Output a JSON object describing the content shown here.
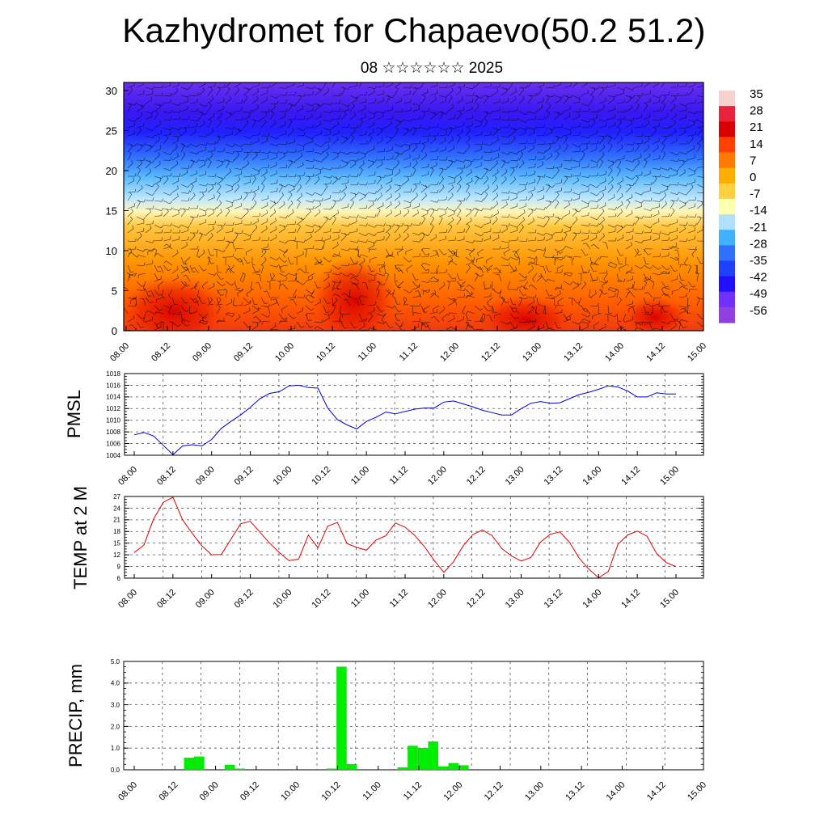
{
  "header": {
    "title": "Kazhydromet for Chapaevo(50.2 51.2)",
    "subtitle": "08 ☆☆☆☆☆☆ 2025"
  },
  "colors": {
    "pmsl_line": "#0000dd",
    "temp_line": "#e00000",
    "precip_bar": "#00ee00",
    "gridline": "#555555"
  },
  "chart_data": [
    {
      "id": "cross-section",
      "type": "heatmap",
      "title": "",
      "ylabel": "",
      "ylim": [
        0,
        31
      ],
      "yticks": [
        "0",
        "5",
        "10",
        "15",
        "20",
        "25",
        "30"
      ],
      "x_tick_labels": [
        "08.00",
        "08.12",
        "09.00",
        "09.12",
        "10.00",
        "10.12",
        "11.00",
        "11.12",
        "12.00",
        "12.12",
        "13.00",
        "13.12",
        "14.00",
        "14.12",
        "15.00"
      ],
      "colorbar_labels": [
        "35",
        "28",
        "21",
        "14",
        "7",
        "0",
        "-7",
        "-14",
        "-21",
        "-28",
        "-35",
        "-42",
        "-49",
        "-56"
      ],
      "colorbar_colors": [
        "#f7d0d0",
        "#e8243c",
        "#d80000",
        "#ff4000",
        "#ff7a00",
        "#ffae00",
        "#ffd040",
        "#ffffb0",
        "#b0e0ff",
        "#40b0ff",
        "#3070ff",
        "#2040ff",
        "#2010ff",
        "#7030ff",
        "#9040e0"
      ],
      "overlay": "wind barbs"
    },
    {
      "id": "pmsl",
      "type": "line",
      "title": "",
      "ylabel": "PMSL",
      "ylim": [
        1004,
        1018
      ],
      "yticks": [
        "1004",
        "1006",
        "1008",
        "1010",
        "1012",
        "1014",
        "1016",
        "1018"
      ],
      "x_tick_labels": [
        "08.00",
        "08.12",
        "09.00",
        "09.12",
        "10.00",
        "10.12",
        "11.00",
        "11.12",
        "12.00",
        "12.12",
        "13.00",
        "13.12",
        "14.00",
        "14.12",
        "15.00"
      ],
      "x_hours": [
        0,
        3,
        6,
        9,
        12,
        15,
        18,
        21,
        24,
        27,
        30,
        33,
        36,
        39,
        42,
        45,
        48,
        51,
        54,
        57,
        60,
        63,
        66,
        69,
        72,
        75,
        78,
        81,
        84,
        87,
        90,
        93,
        96,
        99,
        102,
        105,
        108,
        111,
        114,
        117,
        120,
        123,
        126,
        129,
        132,
        135,
        138,
        141,
        144,
        147,
        150,
        153,
        156,
        159,
        162,
        165,
        168
      ],
      "values": [
        1007.5,
        1007.9,
        1007.3,
        1005.7,
        1004.1,
        1005.6,
        1005.8,
        1005.6,
        1006.7,
        1008.6,
        1009.8,
        1010.9,
        1012.2,
        1013.7,
        1014.6,
        1014.9,
        1015.9,
        1016.0,
        1015.6,
        1015.5,
        1012.1,
        1010.1,
        1009.2,
        1008.5,
        1009.8,
        1010.5,
        1011.4,
        1011.1,
        1011.5,
        1011.9,
        1012.1,
        1012.1,
        1013.1,
        1013.3,
        1012.8,
        1012.3,
        1011.7,
        1011.3,
        1010.9,
        1010.9,
        1012.0,
        1012.9,
        1013.2,
        1012.9,
        1013.0,
        1013.7,
        1014.4,
        1014.8,
        1015.3,
        1015.9,
        1015.7,
        1015.0,
        1014.0,
        1014.0,
        1014.7,
        1014.5,
        1014.5
      ]
    },
    {
      "id": "temp",
      "type": "line",
      "title": "",
      "ylabel": "TEMP at 2 M",
      "ylim": [
        6,
        27
      ],
      "yticks": [
        "6",
        "9",
        "12",
        "15",
        "18",
        "21",
        "24",
        "27"
      ],
      "x_tick_labels": [
        "08.00",
        "08.12",
        "09.00",
        "09.12",
        "10.00",
        "10.12",
        "11.00",
        "11.12",
        "12.00",
        "12.12",
        "13.00",
        "13.12",
        "14.00",
        "14.12",
        "15.00"
      ],
      "x_hours": [
        0,
        3,
        6,
        9,
        12,
        15,
        18,
        21,
        24,
        27,
        30,
        33,
        36,
        39,
        42,
        45,
        48,
        51,
        54,
        57,
        60,
        63,
        66,
        69,
        72,
        75,
        78,
        81,
        84,
        87,
        90,
        93,
        96,
        99,
        102,
        105,
        108,
        111,
        114,
        117,
        120,
        123,
        126,
        129,
        132,
        135,
        138,
        141,
        144,
        147,
        150,
        153,
        156,
        159,
        162,
        165,
        168
      ],
      "values": [
        12.6,
        14.5,
        21.2,
        25.5,
        26.8,
        21.0,
        17.5,
        14.3,
        12.0,
        12.1,
        16.0,
        20.0,
        20.6,
        17.8,
        15.0,
        12.6,
        10.5,
        10.9,
        17.1,
        13.8,
        19.4,
        20.3,
        14.9,
        13.9,
        13.2,
        15.8,
        16.9,
        20.2,
        19.1,
        17.0,
        14.1,
        10.6,
        7.5,
        10.2,
        14.3,
        17.2,
        18.4,
        16.9,
        13.6,
        11.7,
        10.4,
        11.3,
        15.3,
        17.3,
        17.9,
        15.2,
        11.1,
        8.3,
        6.1,
        7.7,
        14.7,
        17.1,
        18.1,
        16.8,
        12.3,
        10.0,
        9.0
      ]
    },
    {
      "id": "precip",
      "type": "bar",
      "title": "",
      "ylabel": "PRECIP, mm",
      "ylim": [
        0,
        5
      ],
      "yticks": [
        "0.0",
        "1.0",
        "2.0",
        "3.0",
        "4.0",
        "5.0"
      ],
      "x_tick_labels": [
        "08.00",
        "08.12",
        "09.00",
        "09.12",
        "10.00",
        "10.12",
        "11.00",
        "11.12",
        "12.00",
        "12.12",
        "13.00",
        "13.12",
        "14.00",
        "14.12",
        "15.00"
      ],
      "bars": [
        {
          "hour": 15,
          "value": 0.55
        },
        {
          "hour": 18,
          "value": 0.6
        },
        {
          "hour": 27,
          "value": 0.22
        },
        {
          "hour": 30,
          "value": 0.05
        },
        {
          "hour": 57,
          "value": 0.05
        },
        {
          "hour": 60,
          "value": 4.75
        },
        {
          "hour": 63,
          "value": 0.25
        },
        {
          "hour": 78,
          "value": 0.1
        },
        {
          "hour": 81,
          "value": 1.1
        },
        {
          "hour": 84,
          "value": 1.0
        },
        {
          "hour": 87,
          "value": 1.3
        },
        {
          "hour": 90,
          "value": 0.15
        },
        {
          "hour": 93,
          "value": 0.3
        },
        {
          "hour": 96,
          "value": 0.2
        }
      ]
    }
  ]
}
